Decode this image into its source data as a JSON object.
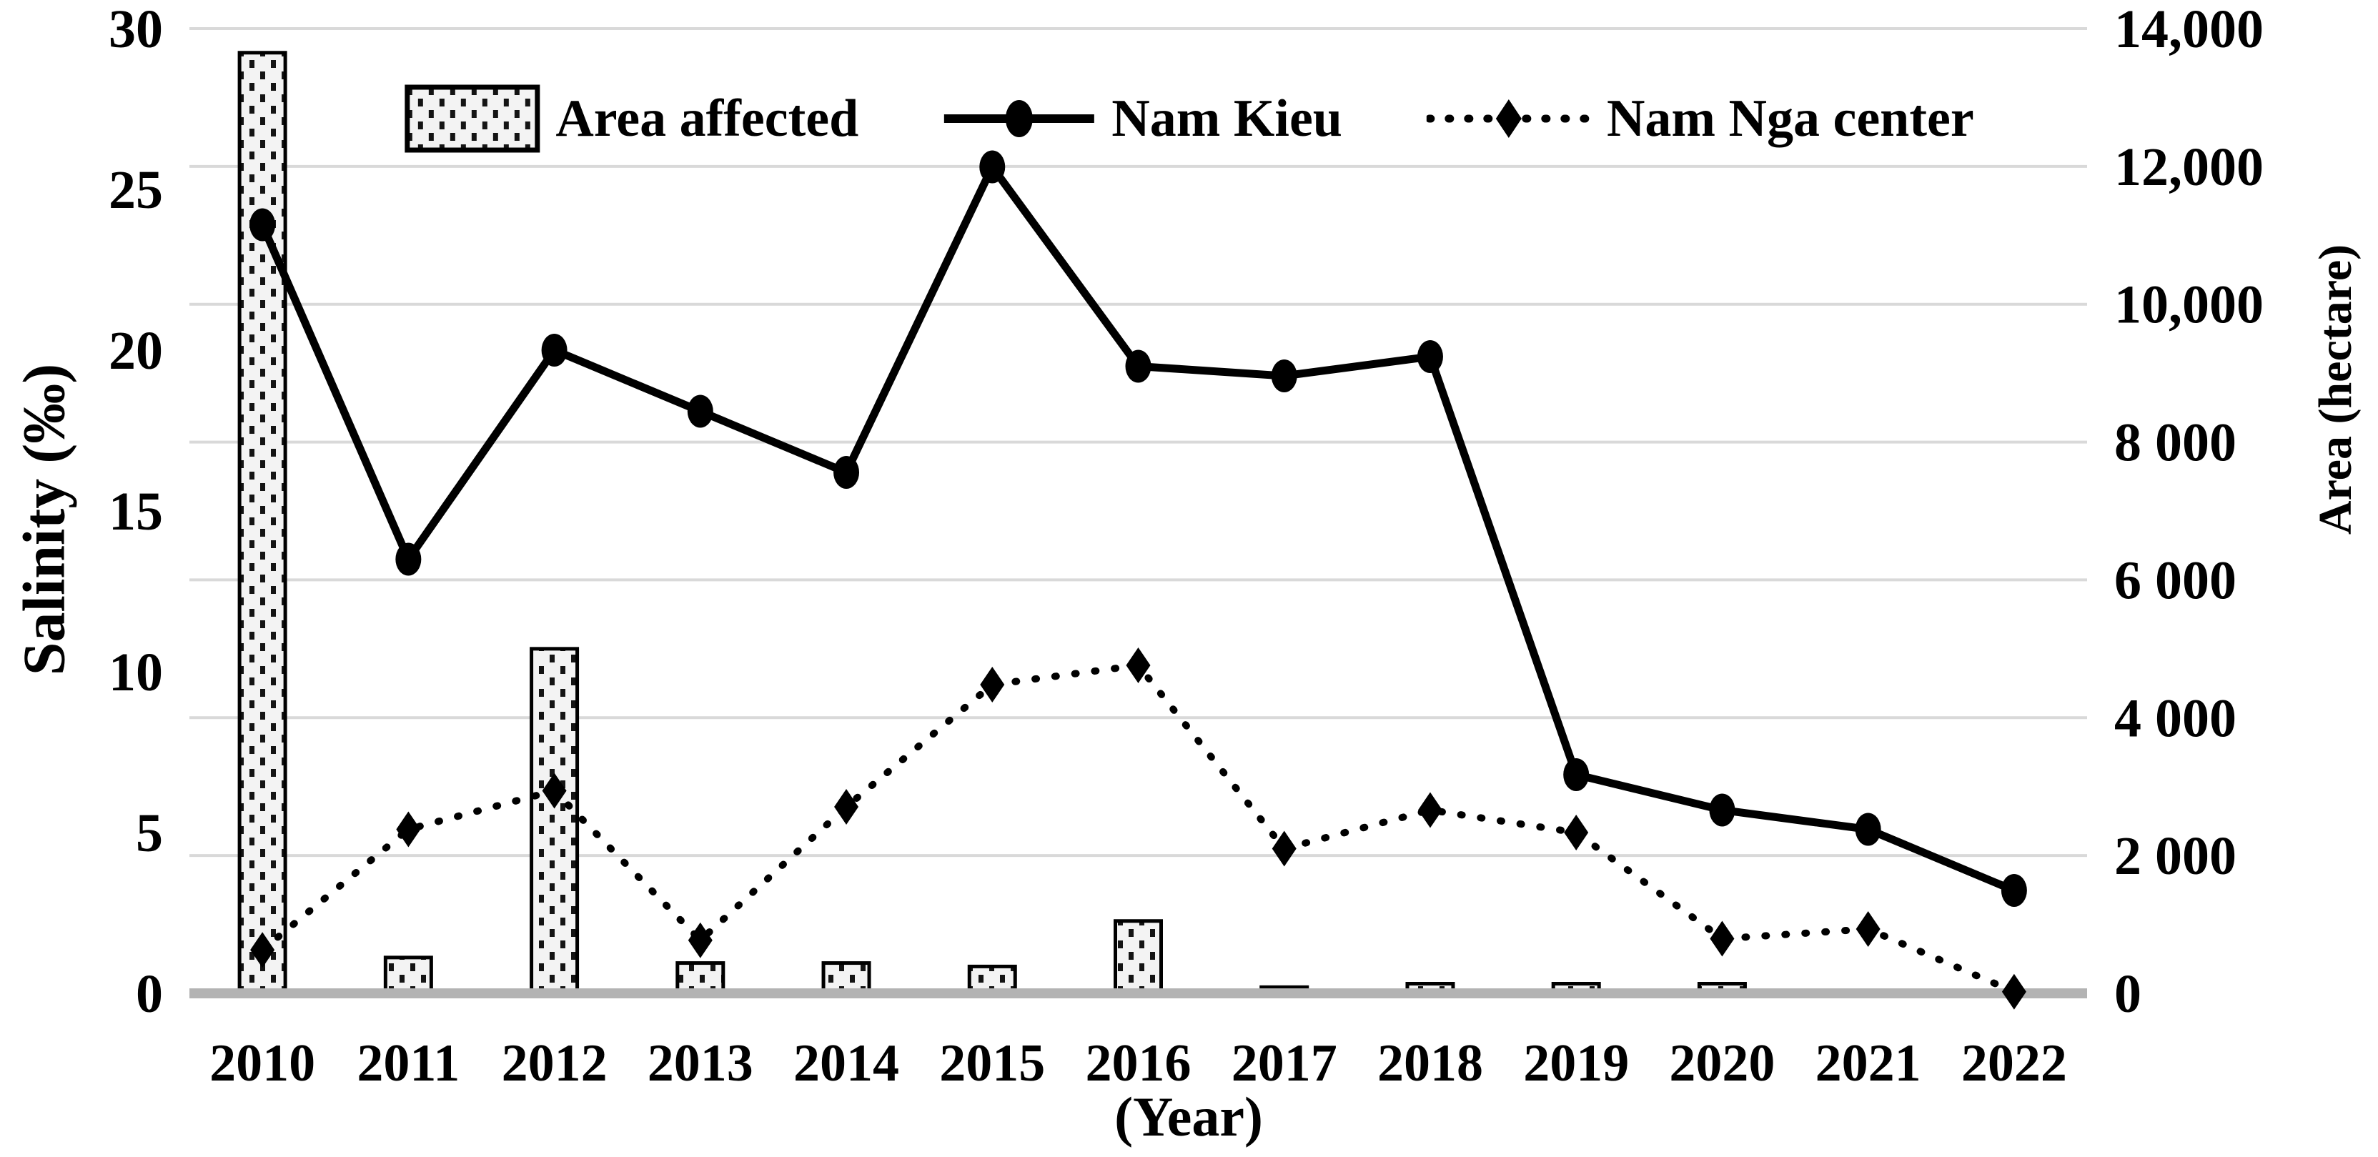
{
  "legend": {
    "items": [
      {
        "label": "Area affected",
        "swatch": "dotted-bar"
      },
      {
        "label": "Nam Kieu",
        "swatch": "solid-line-circle-marker"
      },
      {
        "label": "Nam Nga center",
        "swatch": "dotted-line-diamond-marker"
      }
    ]
  },
  "axes": {
    "left": {
      "title": "Salinity (‰)",
      "ticks": [
        "30",
        "25",
        "20",
        "15",
        "10",
        "5",
        "0"
      ]
    },
    "right": {
      "title": "Area (hectare)",
      "ticks": [
        "14,000",
        "12,000",
        "10,000",
        "8 000",
        "6 000",
        "4 000",
        "2 000",
        "0"
      ]
    },
    "x": {
      "title": "(Year)",
      "ticks": [
        "2010",
        "2011",
        "2012",
        "2013",
        "2014",
        "2015",
        "2016",
        "2017",
        "2018",
        "2019",
        "2020",
        "2021",
        "2022"
      ]
    }
  },
  "chart_data": {
    "type": "combo",
    "categories": [
      2010,
      2011,
      2012,
      2013,
      2014,
      2015,
      2016,
      2017,
      2018,
      2019,
      2020,
      2021,
      2022
    ],
    "series": [
      {
        "name": "Area affected",
        "type": "bar",
        "axis": "right",
        "unit": "hectare",
        "values": [
          13650,
          520,
          5000,
          440,
          440,
          390,
          1050,
          90,
          140,
          140,
          140,
          0,
          0
        ]
      },
      {
        "name": "Nam Kieu",
        "type": "line",
        "style": "solid",
        "marker": "circle",
        "axis": "left",
        "unit": "permille",
        "values": [
          23.9,
          13.5,
          20.0,
          18.1,
          16.2,
          25.7,
          19.5,
          19.2,
          19.8,
          6.8,
          5.7,
          5.1,
          3.2
        ]
      },
      {
        "name": "Nam Nga center",
        "type": "line",
        "style": "dotted",
        "marker": "diamond",
        "axis": "left",
        "unit": "permille",
        "values": [
          1.35,
          5.1,
          6.3,
          1.65,
          5.8,
          9.6,
          10.2,
          4.5,
          5.7,
          5.0,
          1.7,
          2.0,
          0.05
        ]
      }
    ],
    "left_axis": {
      "label": "Salinity (‰)",
      "range": [
        0,
        30
      ],
      "tick_step": 5
    },
    "right_axis": {
      "label": "Area (hectare)",
      "range": [
        0,
        14000
      ],
      "tick_step": 2000
    },
    "xlabel": "(Year)",
    "title": "",
    "grid": "horizontal gridlines at 2,000-hectare intervals",
    "legend_position": "top-center",
    "colors": {
      "series": "#000000",
      "gridline": "#d9d9d9",
      "baseline": "#b3b3b3",
      "bar_fill": "#f3f3f3",
      "text": "#000000"
    }
  }
}
